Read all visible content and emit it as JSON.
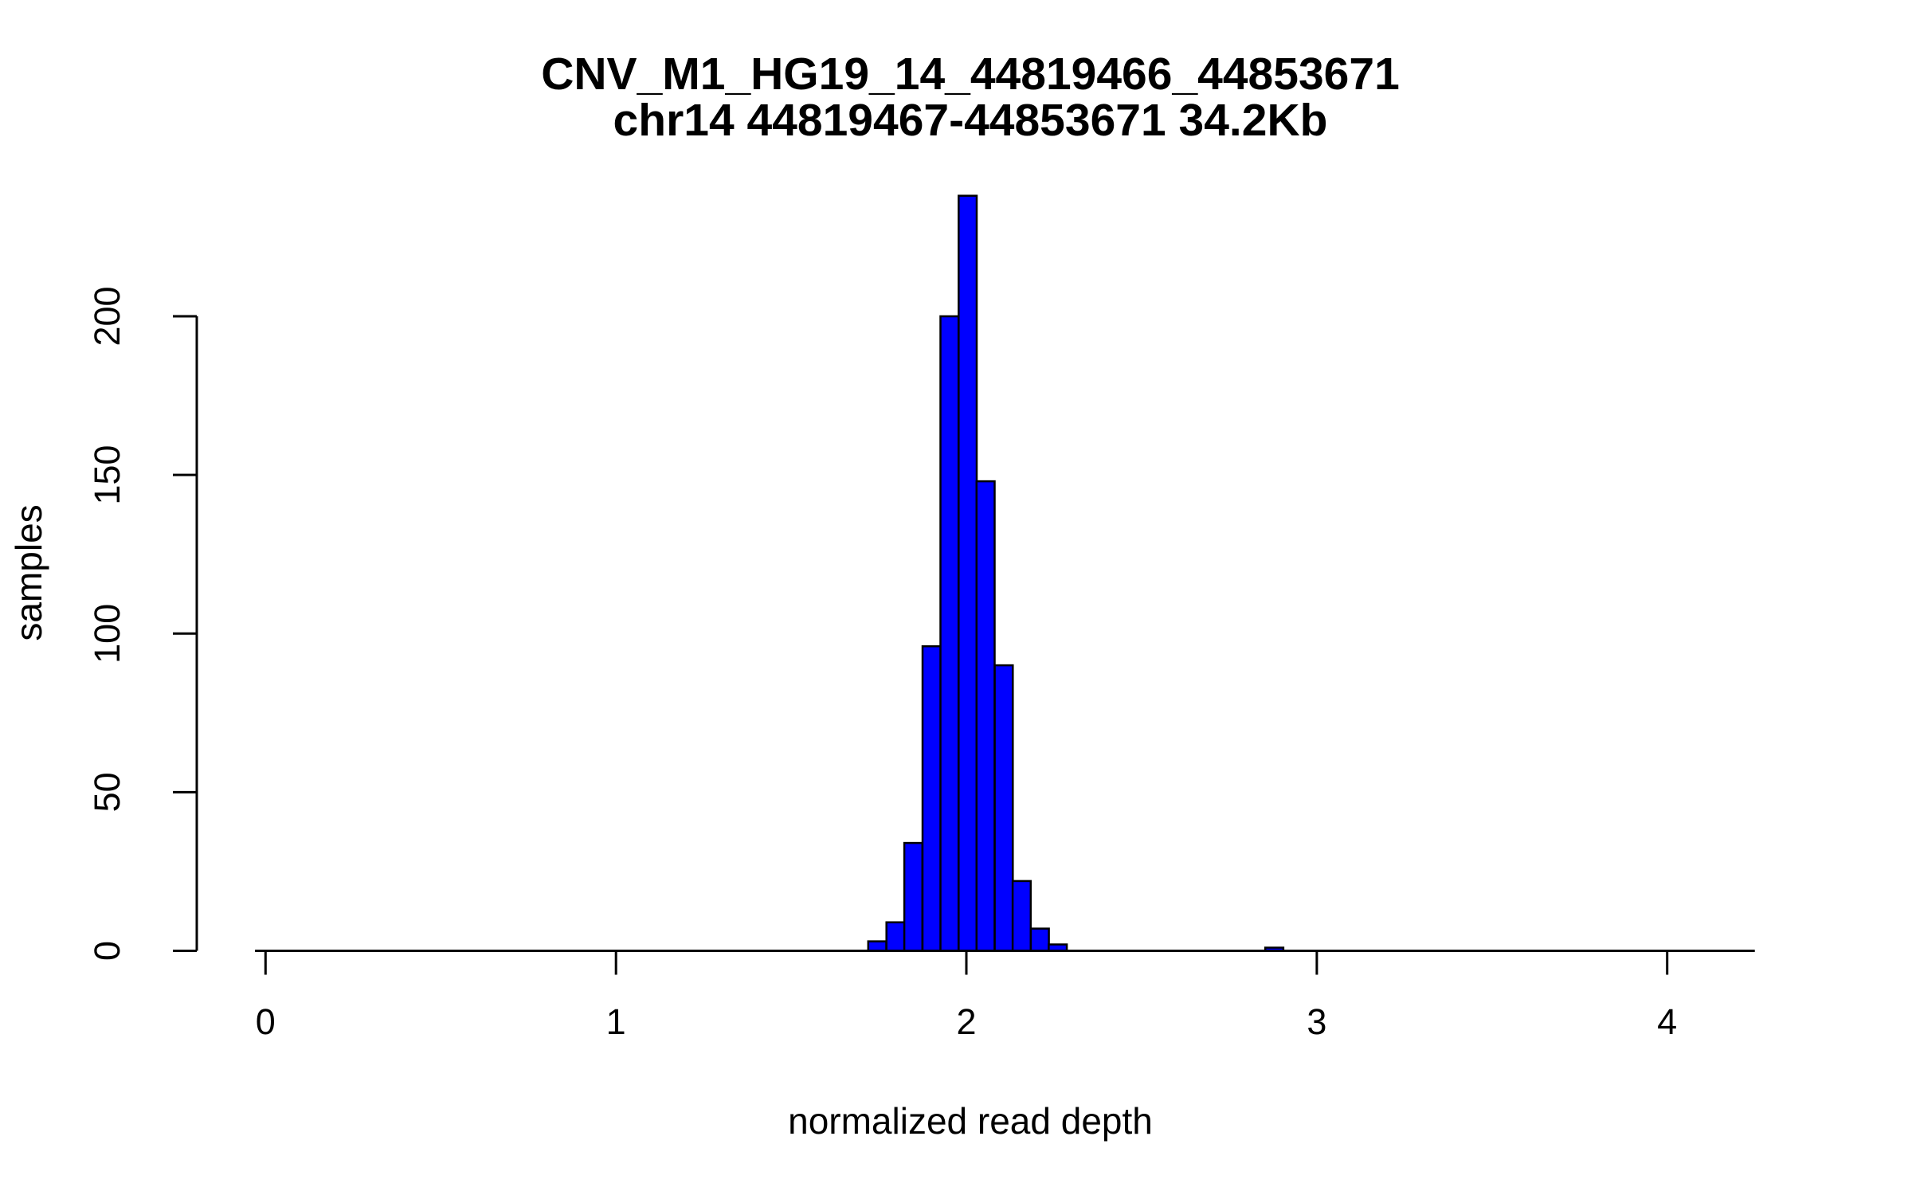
{
  "chart_data": {
    "type": "bar",
    "subtype": "histogram",
    "title": "CNV_M1_HG19_14_44819466_44853671",
    "subtitle": "chr14 44819467-44853671 34.2Kb",
    "xlabel": "normalized read depth",
    "ylabel": "samples",
    "bin_width": 0.0515,
    "bins": [
      {
        "start": 1.72,
        "count": 3
      },
      {
        "start": 1.772,
        "count": 9
      },
      {
        "start": 1.823,
        "count": 34
      },
      {
        "start": 1.875,
        "count": 96
      },
      {
        "start": 1.926,
        "count": 200
      },
      {
        "start": 1.978,
        "count": 238
      },
      {
        "start": 2.029,
        "count": 148
      },
      {
        "start": 2.081,
        "count": 90
      },
      {
        "start": 2.132,
        "count": 22
      },
      {
        "start": 2.184,
        "count": 7
      },
      {
        "start": 2.235,
        "count": 2
      },
      {
        "start": 2.853,
        "count": 1
      }
    ],
    "x_ticks": {
      "values": [
        0,
        1,
        2,
        3,
        4
      ],
      "labels": [
        "0",
        "1",
        "2",
        "3",
        "4"
      ]
    },
    "y_ticks": {
      "values": [
        0,
        50,
        100,
        150,
        200
      ],
      "labels": [
        "0",
        "50",
        "100",
        "150",
        "200"
      ]
    },
    "x_axis_span": [
      -0.03,
      4.25
    ],
    "y_axis_span": [
      0,
      200
    ],
    "xlim": [
      -0.2,
      4.25
    ],
    "ylim": [
      0,
      238
    ],
    "grid": false,
    "legend": false,
    "colors": {
      "bar_fill": "#0000FF",
      "bar_edge": "#000000",
      "axis": "#000000",
      "text": "#000000",
      "background": "#FFFFFF"
    }
  }
}
